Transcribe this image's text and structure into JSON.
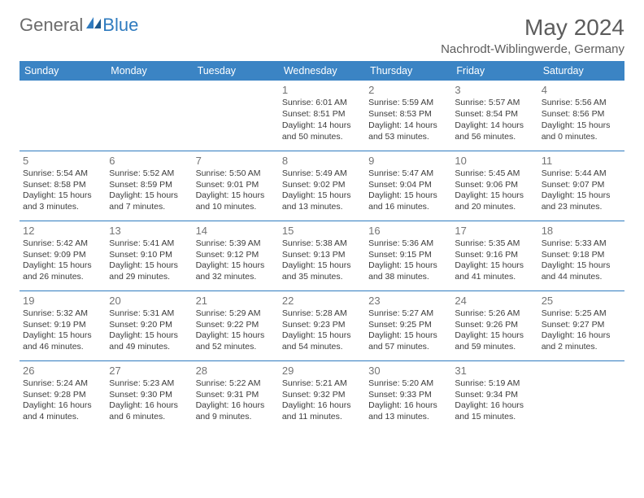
{
  "logo": {
    "general": "General",
    "blue": "Blue"
  },
  "title": "May 2024",
  "location": "Nachrodt-Wiblingwerde, Germany",
  "colors": {
    "header_bg": "#3b84c4",
    "header_text": "#ffffff",
    "line": "#2f7bbf",
    "body_text": "#3c3c3c",
    "daynum": "#747474",
    "title_text": "#5c5c5c",
    "logo_gray": "#6b6b6b",
    "logo_blue": "#2f7bbf",
    "background": "#ffffff"
  },
  "typography": {
    "title_fontsize": 28,
    "location_fontsize": 15,
    "header_fontsize": 12.5,
    "cell_fontsize": 10.5,
    "daynum_fontsize": 13
  },
  "weekdays": [
    "Sunday",
    "Monday",
    "Tuesday",
    "Wednesday",
    "Thursday",
    "Friday",
    "Saturday"
  ],
  "weeks": [
    [
      {
        "n": "",
        "sr": "",
        "ss": "",
        "dl": ""
      },
      {
        "n": "",
        "sr": "",
        "ss": "",
        "dl": ""
      },
      {
        "n": "",
        "sr": "",
        "ss": "",
        "dl": ""
      },
      {
        "n": "1",
        "sr": "Sunrise: 6:01 AM",
        "ss": "Sunset: 8:51 PM",
        "dl": "Daylight: 14 hours and 50 minutes."
      },
      {
        "n": "2",
        "sr": "Sunrise: 5:59 AM",
        "ss": "Sunset: 8:53 PM",
        "dl": "Daylight: 14 hours and 53 minutes."
      },
      {
        "n": "3",
        "sr": "Sunrise: 5:57 AM",
        "ss": "Sunset: 8:54 PM",
        "dl": "Daylight: 14 hours and 56 minutes."
      },
      {
        "n": "4",
        "sr": "Sunrise: 5:56 AM",
        "ss": "Sunset: 8:56 PM",
        "dl": "Daylight: 15 hours and 0 minutes."
      }
    ],
    [
      {
        "n": "5",
        "sr": "Sunrise: 5:54 AM",
        "ss": "Sunset: 8:58 PM",
        "dl": "Daylight: 15 hours and 3 minutes."
      },
      {
        "n": "6",
        "sr": "Sunrise: 5:52 AM",
        "ss": "Sunset: 8:59 PM",
        "dl": "Daylight: 15 hours and 7 minutes."
      },
      {
        "n": "7",
        "sr": "Sunrise: 5:50 AM",
        "ss": "Sunset: 9:01 PM",
        "dl": "Daylight: 15 hours and 10 minutes."
      },
      {
        "n": "8",
        "sr": "Sunrise: 5:49 AM",
        "ss": "Sunset: 9:02 PM",
        "dl": "Daylight: 15 hours and 13 minutes."
      },
      {
        "n": "9",
        "sr": "Sunrise: 5:47 AM",
        "ss": "Sunset: 9:04 PM",
        "dl": "Daylight: 15 hours and 16 minutes."
      },
      {
        "n": "10",
        "sr": "Sunrise: 5:45 AM",
        "ss": "Sunset: 9:06 PM",
        "dl": "Daylight: 15 hours and 20 minutes."
      },
      {
        "n": "11",
        "sr": "Sunrise: 5:44 AM",
        "ss": "Sunset: 9:07 PM",
        "dl": "Daylight: 15 hours and 23 minutes."
      }
    ],
    [
      {
        "n": "12",
        "sr": "Sunrise: 5:42 AM",
        "ss": "Sunset: 9:09 PM",
        "dl": "Daylight: 15 hours and 26 minutes."
      },
      {
        "n": "13",
        "sr": "Sunrise: 5:41 AM",
        "ss": "Sunset: 9:10 PM",
        "dl": "Daylight: 15 hours and 29 minutes."
      },
      {
        "n": "14",
        "sr": "Sunrise: 5:39 AM",
        "ss": "Sunset: 9:12 PM",
        "dl": "Daylight: 15 hours and 32 minutes."
      },
      {
        "n": "15",
        "sr": "Sunrise: 5:38 AM",
        "ss": "Sunset: 9:13 PM",
        "dl": "Daylight: 15 hours and 35 minutes."
      },
      {
        "n": "16",
        "sr": "Sunrise: 5:36 AM",
        "ss": "Sunset: 9:15 PM",
        "dl": "Daylight: 15 hours and 38 minutes."
      },
      {
        "n": "17",
        "sr": "Sunrise: 5:35 AM",
        "ss": "Sunset: 9:16 PM",
        "dl": "Daylight: 15 hours and 41 minutes."
      },
      {
        "n": "18",
        "sr": "Sunrise: 5:33 AM",
        "ss": "Sunset: 9:18 PM",
        "dl": "Daylight: 15 hours and 44 minutes."
      }
    ],
    [
      {
        "n": "19",
        "sr": "Sunrise: 5:32 AM",
        "ss": "Sunset: 9:19 PM",
        "dl": "Daylight: 15 hours and 46 minutes."
      },
      {
        "n": "20",
        "sr": "Sunrise: 5:31 AM",
        "ss": "Sunset: 9:20 PM",
        "dl": "Daylight: 15 hours and 49 minutes."
      },
      {
        "n": "21",
        "sr": "Sunrise: 5:29 AM",
        "ss": "Sunset: 9:22 PM",
        "dl": "Daylight: 15 hours and 52 minutes."
      },
      {
        "n": "22",
        "sr": "Sunrise: 5:28 AM",
        "ss": "Sunset: 9:23 PM",
        "dl": "Daylight: 15 hours and 54 minutes."
      },
      {
        "n": "23",
        "sr": "Sunrise: 5:27 AM",
        "ss": "Sunset: 9:25 PM",
        "dl": "Daylight: 15 hours and 57 minutes."
      },
      {
        "n": "24",
        "sr": "Sunrise: 5:26 AM",
        "ss": "Sunset: 9:26 PM",
        "dl": "Daylight: 15 hours and 59 minutes."
      },
      {
        "n": "25",
        "sr": "Sunrise: 5:25 AM",
        "ss": "Sunset: 9:27 PM",
        "dl": "Daylight: 16 hours and 2 minutes."
      }
    ],
    [
      {
        "n": "26",
        "sr": "Sunrise: 5:24 AM",
        "ss": "Sunset: 9:28 PM",
        "dl": "Daylight: 16 hours and 4 minutes."
      },
      {
        "n": "27",
        "sr": "Sunrise: 5:23 AM",
        "ss": "Sunset: 9:30 PM",
        "dl": "Daylight: 16 hours and 6 minutes."
      },
      {
        "n": "28",
        "sr": "Sunrise: 5:22 AM",
        "ss": "Sunset: 9:31 PM",
        "dl": "Daylight: 16 hours and 9 minutes."
      },
      {
        "n": "29",
        "sr": "Sunrise: 5:21 AM",
        "ss": "Sunset: 9:32 PM",
        "dl": "Daylight: 16 hours and 11 minutes."
      },
      {
        "n": "30",
        "sr": "Sunrise: 5:20 AM",
        "ss": "Sunset: 9:33 PM",
        "dl": "Daylight: 16 hours and 13 minutes."
      },
      {
        "n": "31",
        "sr": "Sunrise: 5:19 AM",
        "ss": "Sunset: 9:34 PM",
        "dl": "Daylight: 16 hours and 15 minutes."
      },
      {
        "n": "",
        "sr": "",
        "ss": "",
        "dl": ""
      }
    ]
  ]
}
